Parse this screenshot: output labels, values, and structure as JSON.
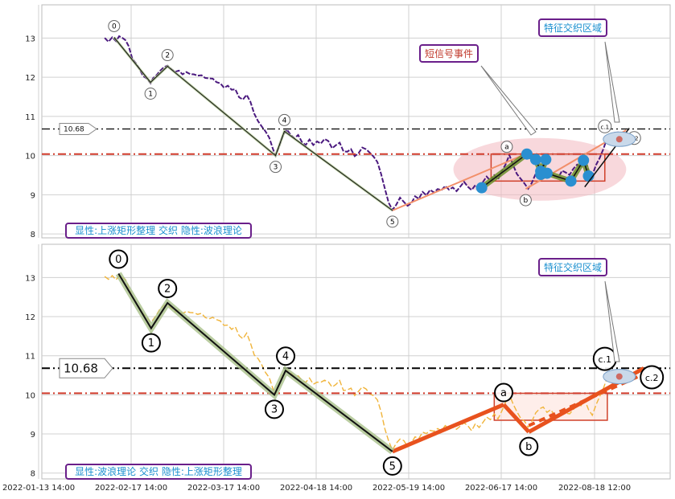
{
  "chart_data": [
    {
      "type": "line",
      "panel": "top",
      "ylim": [
        7.9,
        13.85
      ],
      "yticks": [
        8,
        9,
        10,
        11,
        12,
        13
      ],
      "xlim": [
        0,
        100
      ],
      "grid": true,
      "caption": "显性:上涨矩形整理 交织 隐性:波浪理论",
      "annotations": [
        "短信号事件",
        "特征交织区域"
      ],
      "hline_label": "10.68",
      "hlines": [
        {
          "y": 10.68,
          "color": "#000000",
          "style": "dash-dot"
        },
        {
          "y": 10.04,
          "color": "#d03a2a",
          "style": "dash-dot"
        }
      ],
      "price_color": "#4b1a7f",
      "price_series": [
        [
          10,
          13.0
        ],
        [
          10.6,
          12.93
        ],
        [
          11.2,
          13.02
        ],
        [
          11.8,
          12.94
        ],
        [
          12.3,
          13.05
        ],
        [
          12.8,
          13.0
        ],
        [
          13.3,
          12.92
        ],
        [
          13.8,
          12.78
        ],
        [
          14.4,
          12.5
        ],
        [
          15.0,
          12.35
        ],
        [
          15.5,
          12.2
        ],
        [
          16.1,
          12.05
        ],
        [
          16.7,
          11.97
        ],
        [
          17.3,
          11.87
        ],
        [
          17.7,
          11.95
        ],
        [
          18.2,
          12.05
        ],
        [
          18.8,
          12.18
        ],
        [
          19.4,
          12.25
        ],
        [
          20.0,
          12.28
        ],
        [
          20.6,
          12.2
        ],
        [
          21.2,
          12.12
        ],
        [
          21.8,
          12.18
        ],
        [
          22.4,
          12.1
        ],
        [
          23.0,
          12.15
        ],
        [
          23.6,
          12.08
        ],
        [
          24.2,
          12.1
        ],
        [
          24.8,
          12.05
        ],
        [
          25.4,
          12.08
        ],
        [
          26.0,
          12.0
        ],
        [
          26.6,
          11.95
        ],
        [
          27.2,
          11.97
        ],
        [
          27.8,
          11.9
        ],
        [
          28.4,
          11.86
        ],
        [
          29.0,
          11.75
        ],
        [
          29.6,
          11.8
        ],
        [
          30.2,
          11.7
        ],
        [
          30.8,
          11.72
        ],
        [
          31.4,
          11.5
        ],
        [
          32.0,
          11.45
        ],
        [
          32.6,
          11.55
        ],
        [
          33.2,
          11.35
        ],
        [
          33.8,
          11.05
        ],
        [
          34.4,
          10.9
        ],
        [
          35.0,
          10.75
        ],
        [
          35.6,
          10.6
        ],
        [
          36.2,
          10.45
        ],
        [
          36.8,
          10.15
        ],
        [
          37.2,
          10.0
        ],
        [
          37.8,
          10.25
        ],
        [
          38.4,
          10.55
        ],
        [
          39.0,
          10.65
        ],
        [
          39.6,
          10.55
        ],
        [
          40.2,
          10.45
        ],
        [
          40.8,
          10.5
        ],
        [
          41.4,
          10.35
        ],
        [
          42.0,
          10.3
        ],
        [
          42.6,
          10.4
        ],
        [
          43.2,
          10.25
        ],
        [
          43.8,
          10.35
        ],
        [
          44.4,
          10.3
        ],
        [
          45.0,
          10.4
        ],
        [
          45.6,
          10.35
        ],
        [
          46.2,
          10.2
        ],
        [
          46.8,
          10.28
        ],
        [
          47.4,
          10.35
        ],
        [
          48.0,
          10.12
        ],
        [
          48.6,
          10.1
        ],
        [
          49.2,
          10.18
        ],
        [
          49.8,
          10.0
        ],
        [
          50.4,
          10.08
        ],
        [
          51.0,
          10.2
        ],
        [
          51.6,
          10.15
        ],
        [
          52.2,
          10.05
        ],
        [
          52.8,
          9.95
        ],
        [
          53.4,
          9.85
        ],
        [
          54.0,
          9.55
        ],
        [
          54.6,
          9.15
        ],
        [
          55.2,
          8.8
        ],
        [
          55.8,
          8.6
        ],
        [
          56.4,
          8.75
        ],
        [
          57.0,
          8.9
        ],
        [
          57.6,
          8.85
        ],
        [
          58.2,
          8.7
        ],
        [
          58.8,
          8.8
        ],
        [
          59.4,
          8.95
        ],
        [
          60.0,
          8.9
        ],
        [
          60.6,
          9.05
        ],
        [
          61.2,
          9.0
        ],
        [
          61.8,
          9.1
        ],
        [
          62.4,
          9.05
        ],
        [
          63.0,
          9.15
        ],
        [
          63.6,
          9.1
        ],
        [
          64.2,
          9.2
        ],
        [
          64.8,
          9.12
        ],
        [
          65.4,
          9.18
        ],
        [
          66.0,
          9.1
        ],
        [
          66.6,
          9.2
        ],
        [
          67.2,
          9.3
        ],
        [
          67.8,
          9.2
        ],
        [
          68.4,
          9.1
        ],
        [
          69.0,
          9.25
        ],
        [
          69.6,
          9.15
        ],
        [
          70.2,
          9.3
        ],
        [
          70.8,
          9.45
        ],
        [
          71.4,
          9.35
        ],
        [
          72.0,
          9.5
        ],
        [
          72.6,
          9.4
        ],
        [
          73.2,
          9.6
        ],
        [
          73.8,
          9.8
        ],
        [
          74.4,
          10.0
        ],
        [
          75.0,
          9.75
        ],
        [
          75.6,
          9.55
        ],
        [
          76.2,
          9.4
        ],
        [
          76.8,
          9.3
        ],
        [
          77.4,
          9.15
        ],
        [
          78.0,
          9.3
        ],
        [
          78.6,
          9.55
        ],
        [
          79.2,
          9.65
        ],
        [
          79.8,
          9.7
        ],
        [
          80.4,
          9.55
        ],
        [
          81.0,
          9.6
        ],
        [
          81.6,
          9.5
        ],
        [
          82.2,
          9.45
        ],
        [
          82.8,
          9.6
        ],
        [
          83.4,
          9.55
        ],
        [
          84.0,
          9.5
        ],
        [
          84.6,
          9.65
        ],
        [
          85.2,
          9.75
        ],
        [
          85.8,
          9.7
        ],
        [
          86.4,
          9.9
        ],
        [
          87.0,
          9.6
        ],
        [
          87.6,
          9.5
        ],
        [
          88.2,
          9.75
        ],
        [
          88.8,
          9.95
        ],
        [
          89.4,
          10.2
        ],
        [
          90.0,
          10.45
        ],
        [
          90.6,
          10.55
        ],
        [
          91.2,
          10.6
        ],
        [
          91.8,
          10.58
        ]
      ],
      "wave_points": [
        {
          "label": "0",
          "x": 11.5,
          "y": 13.02
        },
        {
          "label": "1",
          "x": 17.3,
          "y": 11.87
        },
        {
          "label": "2",
          "x": 20.0,
          "y": 12.28
        },
        {
          "label": "3",
          "x": 37.2,
          "y": 10.0
        },
        {
          "label": "4",
          "x": 38.6,
          "y": 10.62
        },
        {
          "label": "5",
          "x": 55.8,
          "y": 8.6
        }
      ],
      "abc_points": [
        {
          "label": "a",
          "x": 74.0,
          "y": 10.0
        },
        {
          "label": "b",
          "x": 77.0,
          "y": 9.15
        },
        {
          "label": "c.1",
          "x": 89.6,
          "y": 10.5
        },
        {
          "label": "c.2",
          "x": 93.5,
          "y": 10.45
        }
      ],
      "signal_points": [
        [
          70.0,
          9.18
        ],
        [
          77.2,
          10.04
        ],
        [
          78.6,
          9.9
        ],
        [
          79.4,
          9.6
        ],
        [
          80.2,
          9.9
        ],
        [
          79.4,
          9.52
        ],
        [
          80.4,
          9.55
        ],
        [
          84.2,
          9.35
        ],
        [
          86.2,
          9.88
        ],
        [
          87.0,
          9.48
        ]
      ],
      "signal_zone": {
        "x": [
          65.5,
          93.0
        ],
        "y": [
          8.85,
          10.45
        ]
      },
      "rectangle": {
        "x": [
          71.5,
          89.6
        ],
        "y": [
          9.35,
          10.04
        ]
      },
      "trend_lines": [
        {
          "from": [
            55.8,
            8.6
          ],
          "to": [
            77.0,
            10.04
          ],
          "color": "#f28f6a",
          "width": 2
        },
        {
          "from": [
            77.0,
            9.15
          ],
          "to": [
            93.0,
            10.65
          ],
          "color": "#f28f6a",
          "width": 2
        }
      ]
    },
    {
      "type": "line",
      "panel": "bottom",
      "ylim": [
        7.85,
        13.85
      ],
      "yticks": [
        8,
        9,
        10,
        11,
        12,
        13
      ],
      "xlim": [
        0,
        100
      ],
      "grid": true,
      "caption": "显性:波浪理论 交织 隐性:上涨矩形整理",
      "annotations": [
        "特征交织区域"
      ],
      "hline_label": "10.68",
      "hlines": [
        {
          "y": 10.68,
          "color": "#000000",
          "style": "dash-dot"
        },
        {
          "y": 10.04,
          "color": "#d03a2a",
          "style": "dash-dot"
        }
      ],
      "price_color": "#f0b43a",
      "wave_points": [
        {
          "label": "0",
          "x": 12.2,
          "y": 13.1
        },
        {
          "label": "1",
          "x": 17.4,
          "y": 11.7
        },
        {
          "label": "2",
          "x": 20.0,
          "y": 12.35
        },
        {
          "label": "3",
          "x": 37.0,
          "y": 10.0
        },
        {
          "label": "4",
          "x": 38.8,
          "y": 10.62
        },
        {
          "label": "5",
          "x": 55.8,
          "y": 8.55
        }
      ],
      "abc_points": [
        {
          "label": "a",
          "x": 73.5,
          "y": 9.75
        },
        {
          "label": "b",
          "x": 77.5,
          "y": 9.05
        },
        {
          "label": "c.1",
          "x": 89.6,
          "y": 10.55
        },
        {
          "label": "c.2",
          "x": 95.8,
          "y": 10.45
        }
      ],
      "rectangle": {
        "x": [
          72.0,
          90.0
        ],
        "y": [
          9.35,
          10.04
        ]
      },
      "trend_lines": [
        {
          "from": [
            55.8,
            8.55
          ],
          "to": [
            73.5,
            9.75
          ],
          "color": "#e8521e",
          "width": 5
        },
        {
          "from": [
            73.5,
            9.75
          ],
          "to": [
            77.5,
            9.05
          ],
          "color": "#e8521e",
          "width": 5
        },
        {
          "from": [
            77.5,
            9.05
          ],
          "to": [
            95.8,
            10.68
          ],
          "color": "#e8521e",
          "width": 5
        }
      ]
    }
  ],
  "x_tick_labels": [
    "2022-01-13 14:00",
    "2022-02-17 14:00",
    "2022-03-17 14:00",
    "2022-04-18 14:00",
    "2022-05-19 14:00",
    "2022-06-17 14:00",
    "2022-08-18 12:00"
  ]
}
